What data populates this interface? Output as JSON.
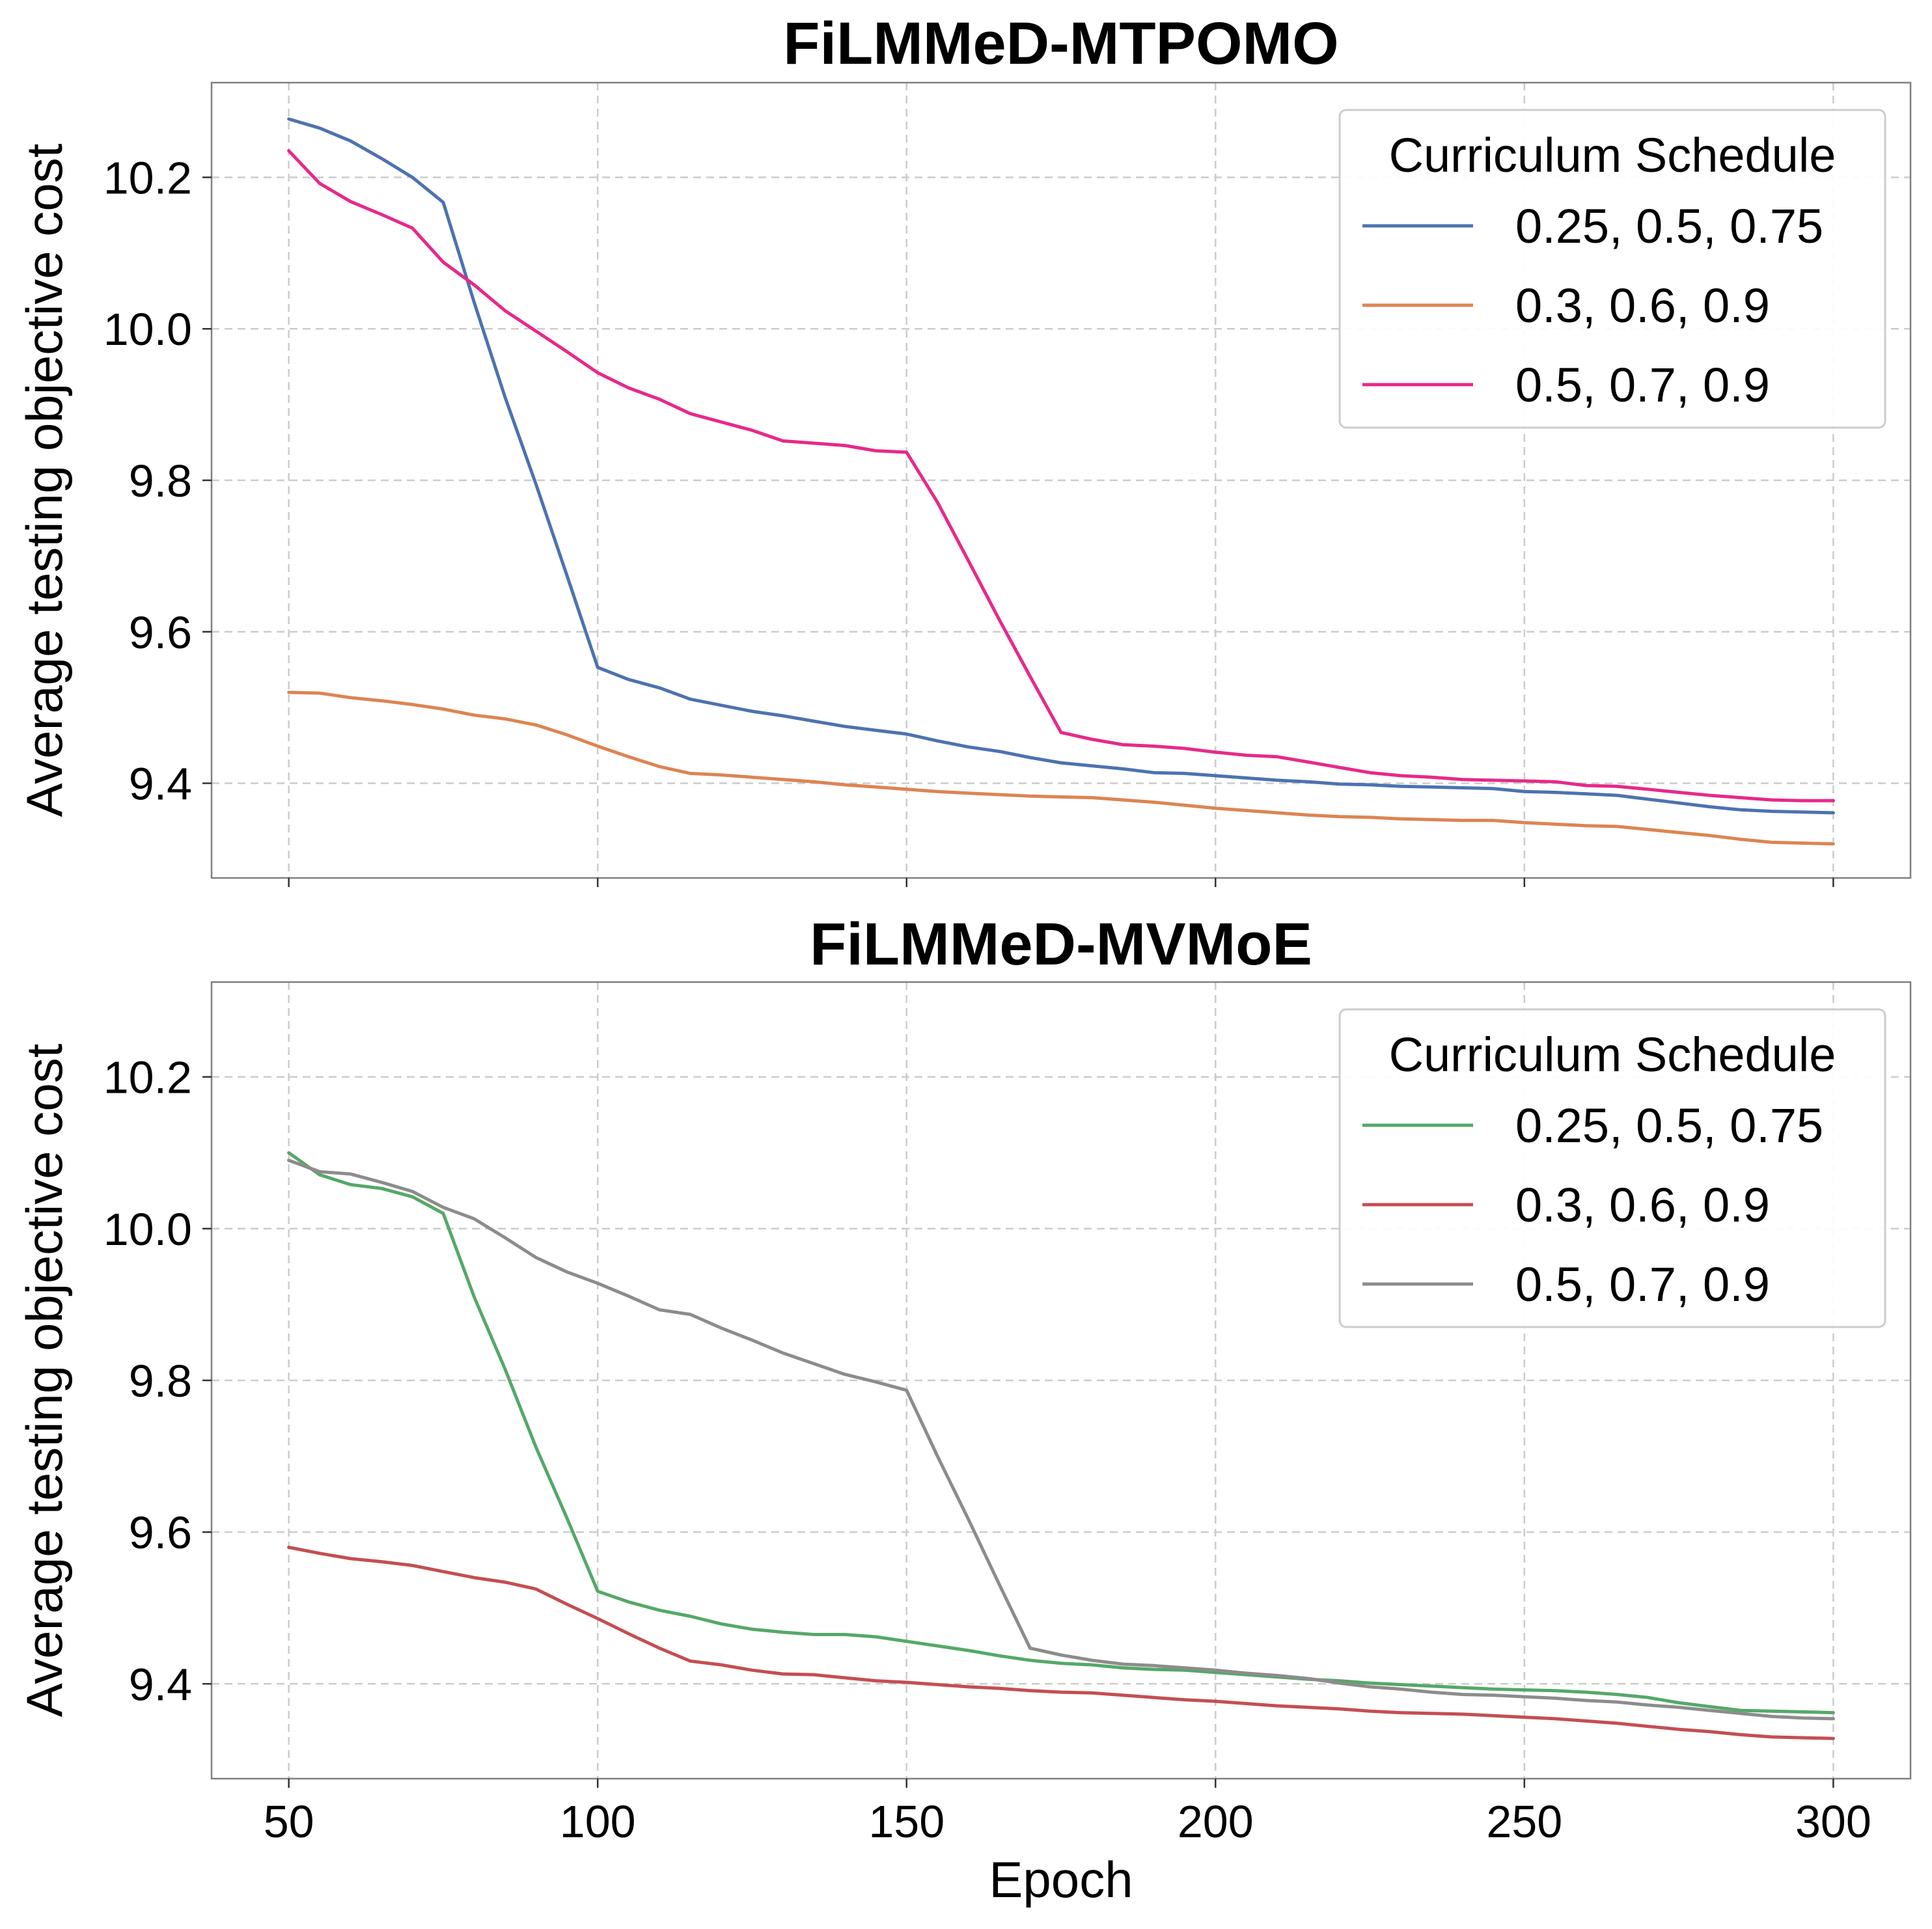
{
  "chart_data": [
    {
      "type": "line",
      "title": "FiLMMeD-MTPOMO",
      "xlabel": "",
      "ylabel": "Average testing objective cost",
      "xlim": [
        37.5,
        312.5
      ],
      "ylim": [
        9.275,
        10.325
      ],
      "xticks": [
        50,
        100,
        150,
        200,
        250,
        300
      ],
      "yticks": [
        9.4,
        9.6,
        9.8,
        10.0,
        10.2
      ],
      "ytick_labels": [
        "9.4",
        "9.6",
        "9.8",
        "10.0",
        "10.2"
      ],
      "grid": true,
      "legend": {
        "title": "Curriculum Schedule",
        "placement": "top-right"
      },
      "x": [
        50,
        55,
        60,
        65,
        70,
        75,
        80,
        85,
        90,
        95,
        100,
        105,
        110,
        115,
        120,
        125,
        130,
        135,
        140,
        145,
        150,
        155,
        160,
        165,
        170,
        175,
        180,
        185,
        190,
        195,
        200,
        205,
        210,
        215,
        220,
        225,
        230,
        235,
        240,
        245,
        250,
        255,
        260,
        265,
        270,
        275,
        280,
        285,
        290,
        295,
        300
      ],
      "series": [
        {
          "name": "0.25, 0.5, 0.75",
          "color": "#4c72b0",
          "values": [
            10.277,
            10.265,
            10.248,
            10.225,
            10.2,
            10.167,
            10.035,
            9.91,
            9.795,
            9.675,
            9.553,
            9.537,
            9.526,
            9.511,
            9.503,
            9.495,
            9.489,
            9.482,
            9.475,
            9.47,
            9.465,
            9.456,
            9.448,
            9.442,
            9.434,
            9.427,
            9.423,
            9.419,
            9.414,
            9.413,
            9.41,
            9.407,
            9.404,
            9.402,
            9.399,
            9.398,
            9.396,
            9.395,
            9.394,
            9.393,
            9.389,
            9.388,
            9.386,
            9.384,
            9.379,
            9.374,
            9.369,
            9.365,
            9.363,
            9.362,
            9.361
          ]
        },
        {
          "name": "0.3, 0.6, 0.9",
          "color": "#dd8452",
          "values": [
            9.52,
            9.519,
            9.513,
            9.509,
            9.504,
            9.498,
            9.49,
            9.485,
            9.477,
            9.464,
            9.449,
            9.435,
            9.422,
            9.413,
            9.411,
            9.408,
            9.405,
            9.402,
            9.398,
            9.395,
            9.392,
            9.389,
            9.387,
            9.385,
            9.383,
            9.382,
            9.381,
            9.378,
            9.375,
            9.371,
            9.367,
            9.364,
            9.361,
            9.358,
            9.356,
            9.355,
            9.353,
            9.352,
            9.351,
            9.351,
            9.348,
            9.346,
            9.344,
            9.343,
            9.339,
            9.335,
            9.331,
            9.326,
            9.322,
            9.321,
            9.32
          ]
        },
        {
          "name": "0.5, 0.7, 0.9",
          "color": "#e7298a",
          "values": [
            10.235,
            10.192,
            10.168,
            10.151,
            10.133,
            10.088,
            10.058,
            10.024,
            9.997,
            9.97,
            9.942,
            9.922,
            9.907,
            9.888,
            9.877,
            9.866,
            9.852,
            9.849,
            9.846,
            9.839,
            9.837,
            9.771,
            9.694,
            9.616,
            9.541,
            9.467,
            9.458,
            9.451,
            9.449,
            9.446,
            9.441,
            9.437,
            9.435,
            9.428,
            9.421,
            9.414,
            9.41,
            9.408,
            9.405,
            9.404,
            9.403,
            9.402,
            9.397,
            9.396,
            9.392,
            9.388,
            9.384,
            9.381,
            9.378,
            9.377,
            9.377
          ]
        }
      ]
    },
    {
      "type": "line",
      "title": "FiLMMeD-MVMoE",
      "xlabel": "Epoch",
      "ylabel": "Average testing objective cost",
      "xlim": [
        37.5,
        312.5
      ],
      "ylim": [
        9.275,
        10.325
      ],
      "xticks": [
        50,
        100,
        150,
        200,
        250,
        300
      ],
      "xtick_labels": [
        "50",
        "100",
        "150",
        "200",
        "250",
        "300"
      ],
      "yticks": [
        9.4,
        9.6,
        9.8,
        10.0,
        10.2
      ],
      "ytick_labels": [
        "9.4",
        "9.6",
        "9.8",
        "10.0",
        "10.2"
      ],
      "grid": true,
      "legend": {
        "title": "Curriculum Schedule",
        "placement": "top-right"
      },
      "x": [
        50,
        55,
        60,
        65,
        70,
        75,
        80,
        85,
        90,
        95,
        100,
        105,
        110,
        115,
        120,
        125,
        130,
        135,
        140,
        145,
        150,
        155,
        160,
        165,
        170,
        175,
        180,
        185,
        190,
        195,
        200,
        205,
        210,
        215,
        220,
        225,
        230,
        235,
        240,
        245,
        250,
        255,
        260,
        265,
        270,
        275,
        280,
        285,
        290,
        295,
        300
      ],
      "series": [
        {
          "name": "0.25, 0.5, 0.75",
          "color": "#55a868",
          "values": [
            10.1,
            10.071,
            10.058,
            10.053,
            10.042,
            10.02,
            9.91,
            9.815,
            9.712,
            9.619,
            9.522,
            9.508,
            9.497,
            9.489,
            9.479,
            9.472,
            9.468,
            9.465,
            9.465,
            9.462,
            9.456,
            9.45,
            9.444,
            9.437,
            9.431,
            9.427,
            9.425,
            9.421,
            9.419,
            9.418,
            9.415,
            9.412,
            9.409,
            9.406,
            9.404,
            9.401,
            9.399,
            9.397,
            9.395,
            9.393,
            9.392,
            9.391,
            9.389,
            9.386,
            9.382,
            9.375,
            9.37,
            9.365,
            9.364,
            9.363,
            9.362
          ]
        },
        {
          "name": "0.3, 0.6, 0.9",
          "color": "#c44e52",
          "values": [
            9.58,
            9.572,
            9.565,
            9.561,
            9.556,
            9.548,
            9.54,
            9.534,
            9.525,
            9.505,
            9.486,
            9.466,
            9.447,
            9.43,
            9.425,
            9.418,
            9.413,
            9.412,
            9.408,
            9.404,
            9.402,
            9.399,
            9.396,
            9.394,
            9.391,
            9.389,
            9.388,
            9.385,
            9.382,
            9.379,
            9.377,
            9.374,
            9.371,
            9.369,
            9.367,
            9.364,
            9.362,
            9.361,
            9.36,
            9.358,
            9.356,
            9.354,
            9.351,
            9.348,
            9.344,
            9.34,
            9.337,
            9.333,
            9.33,
            9.329,
            9.328
          ]
        },
        {
          "name": "0.5, 0.7, 0.9",
          "color": "#8c8c8c",
          "values": [
            10.09,
            10.075,
            10.072,
            10.061,
            10.049,
            10.028,
            10.013,
            9.988,
            9.962,
            9.943,
            9.928,
            9.911,
            9.893,
            9.887,
            9.869,
            9.853,
            9.836,
            9.822,
            9.808,
            9.798,
            9.787,
            9.7,
            9.617,
            9.531,
            9.447,
            9.438,
            9.431,
            9.426,
            9.424,
            9.421,
            9.418,
            9.414,
            9.411,
            9.407,
            9.401,
            9.396,
            9.393,
            9.389,
            9.386,
            9.385,
            9.383,
            9.381,
            9.378,
            9.376,
            9.372,
            9.369,
            9.365,
            9.361,
            9.357,
            9.355,
            9.354
          ]
        }
      ]
    }
  ]
}
